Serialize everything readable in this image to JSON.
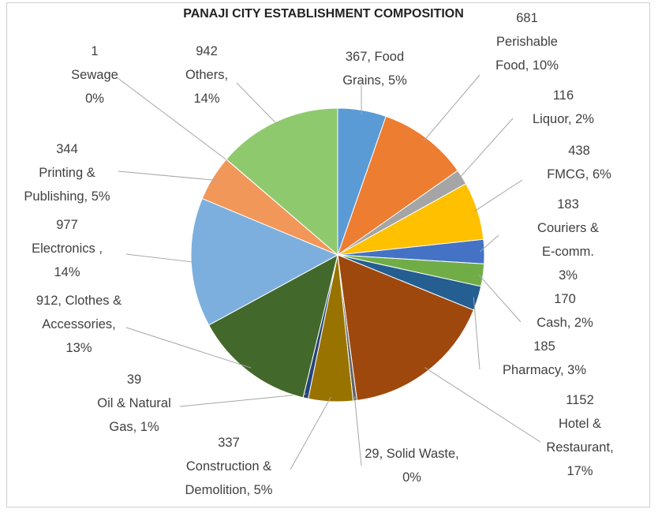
{
  "chart_data": {
    "type": "pie",
    "title": "PANAJI CITY ESTABLISHMENT COMPOSITION",
    "values": [
      367,
      681,
      116,
      438,
      183,
      170,
      185,
      1152,
      29,
      337,
      39,
      912,
      977,
      344,
      1,
      942
    ],
    "value_labels": [
      "367, Food\nGrains, 5%",
      "681\nPerishable\nFood, 10%",
      "116\nLiquor, 2%",
      "438\nFMCG, 6%",
      "183\nCouriers &\nE-comm.\n3%",
      "170\nCash, 2%",
      "185\nPharmacy, 3%",
      "1152\nHotel &\nRestaurant,\n17%",
      "29, Solid Waste,\n0%",
      "337\nConstruction &\nDemolition, 5%",
      "39\nOil & Natural\nGas, 1%",
      "912, Clothes &\nAccessories,\n13%",
      "977\nElectronics ,\n14%",
      "344\nPrinting &\nPublishing, 5%",
      "1\nSewage\n0%",
      "942\nOthers,\n14%"
    ],
    "colors": [
      "#5B9BD5",
      "#ED7D31",
      "#A5A5A5",
      "#FFC000",
      "#4472C4",
      "#70AD47",
      "#255E91",
      "#9E480E",
      "#636363",
      "#997300",
      "#264478",
      "#43682B",
      "#7CAFDD",
      "#F1975A",
      "#B7B7B7",
      "#8FC96E"
    ]
  }
}
